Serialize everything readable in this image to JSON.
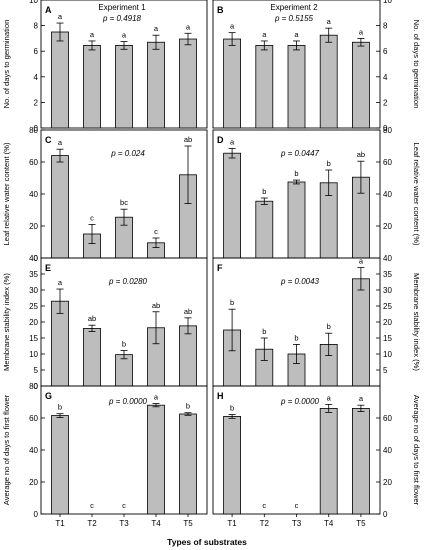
{
  "figure": {
    "xlabel": "Types of substrates",
    "categories": [
      "T1",
      "T2",
      "T3",
      "T4",
      "T5"
    ]
  },
  "chart_data": [
    {
      "panel": "A",
      "type": "bar",
      "experiment": "Experiment 1",
      "p_text": "p = 0.4918",
      "ylabel": "No. of days to germination",
      "ylabel_side": "left",
      "ylim": [
        0,
        10
      ],
      "yticks": [
        0,
        2,
        4,
        6,
        8,
        10
      ],
      "categories": [
        "T1",
        "T2",
        "T3",
        "T4",
        "T5"
      ],
      "values": [
        7.5,
        6.45,
        6.45,
        6.7,
        6.95
      ],
      "errors": [
        0.7,
        0.35,
        0.3,
        0.55,
        0.45
      ],
      "letters": [
        "a",
        "a",
        "a",
        "a",
        "a"
      ]
    },
    {
      "panel": "B",
      "type": "bar",
      "experiment": "Experiment 2",
      "p_text": "p = 0.5155",
      "ylabel": "No. of days to germination",
      "ylabel_side": "right",
      "ylim": [
        0,
        10
      ],
      "yticks": [
        0,
        2,
        4,
        6,
        8,
        10
      ],
      "categories": [
        "T1",
        "T2",
        "T3",
        "T4",
        "T5"
      ],
      "values": [
        6.95,
        6.45,
        6.45,
        7.25,
        6.7
      ],
      "errors": [
        0.5,
        0.35,
        0.35,
        0.55,
        0.3
      ],
      "letters": [
        "a",
        "a",
        "a",
        "a",
        "a"
      ]
    },
    {
      "panel": "C",
      "type": "bar",
      "experiment": "",
      "p_text": "p = 0.024",
      "ylabel": "Leaf relative water content (%)",
      "ylabel_side": "left",
      "ylim": [
        0,
        80
      ],
      "yticks": [
        0,
        20,
        40,
        60,
        80
      ],
      "categories": [
        "T1",
        "T2",
        "T3",
        "T4",
        "T5"
      ],
      "values": [
        64,
        15,
        25.5,
        9.5,
        52
      ],
      "errors": [
        4,
        6,
        5,
        3,
        18
      ],
      "letters": [
        "a",
        "c",
        "bc",
        "c",
        "ab"
      ]
    },
    {
      "panel": "D",
      "type": "bar",
      "experiment": "",
      "p_text": "p = 0.0447",
      "ylabel": "Leaf relative water content (%)",
      "ylabel_side": "right",
      "ylim": [
        0,
        80
      ],
      "yticks": [
        20,
        40,
        60,
        80
      ],
      "categories": [
        "T1",
        "T2",
        "T3",
        "T4",
        "T5"
      ],
      "values": [
        65.5,
        35.5,
        47.5,
        47,
        50.5
      ],
      "errors": [
        3,
        2,
        1.2,
        8,
        10
      ],
      "letters": [
        "a",
        "b",
        "b",
        "b",
        "ab"
      ]
    },
    {
      "panel": "E",
      "type": "bar",
      "experiment": "",
      "p_text": "p = 0.0280",
      "ylabel": "Membrane stability index (%)",
      "ylabel_side": "left",
      "ylim": [
        0,
        40
      ],
      "yticks": [
        0,
        5,
        10,
        15,
        20,
        25,
        30,
        35,
        40
      ],
      "categories": [
        "T1",
        "T2",
        "T3",
        "T4",
        "T5"
      ],
      "values": [
        26.5,
        18,
        9.8,
        18.2,
        18.8
      ],
      "errors": [
        3.8,
        1,
        1.3,
        5,
        2.5
      ],
      "letters": [
        "a",
        "ab",
        "b",
        "ab",
        "ab"
      ]
    },
    {
      "panel": "F",
      "type": "bar",
      "experiment": "",
      "p_text": "p = 0.0043",
      "ylabel": "Membrane stability index (%)",
      "ylabel_side": "right",
      "ylim": [
        0,
        40
      ],
      "yticks": [
        5,
        10,
        15,
        20,
        25,
        30,
        35,
        40
      ],
      "categories": [
        "T1",
        "T2",
        "T3",
        "T4",
        "T5"
      ],
      "values": [
        17.5,
        11.5,
        10,
        13,
        33.5
      ],
      "errors": [
        6.5,
        3.5,
        3,
        3.5,
        3.5
      ],
      "letters": [
        "b",
        "b",
        "b",
        "b",
        "a"
      ]
    },
    {
      "panel": "G",
      "type": "bar",
      "experiment": "",
      "p_text": "p = 0.0000",
      "ylabel": "Average no of days to first flower",
      "ylabel_side": "left",
      "ylim": [
        0,
        80
      ],
      "yticks": [
        0,
        20,
        40,
        60,
        80
      ],
      "categories": [
        "T1",
        "T2",
        "T3",
        "T4",
        "T5"
      ],
      "values": [
        61.5,
        0,
        0,
        68,
        62.5
      ],
      "errors": [
        1.2,
        0,
        0,
        1,
        0.8
      ],
      "letters": [
        "b",
        "c",
        "c",
        "a",
        "b"
      ]
    },
    {
      "panel": "H",
      "type": "bar",
      "experiment": "",
      "p_text": "p = 0.0000",
      "ylabel": "Average no of days to first flower",
      "ylabel_side": "right",
      "ylim": [
        0,
        80
      ],
      "yticks": [
        0,
        20,
        40,
        60
      ],
      "categories": [
        "T1",
        "T2",
        "T3",
        "T4",
        "T5"
      ],
      "values": [
        61,
        0,
        0,
        66,
        66
      ],
      "errors": [
        1.2,
        0,
        0,
        2.5,
        2
      ],
      "letters": [
        "b",
        "c",
        "c",
        "a",
        "a"
      ]
    }
  ]
}
